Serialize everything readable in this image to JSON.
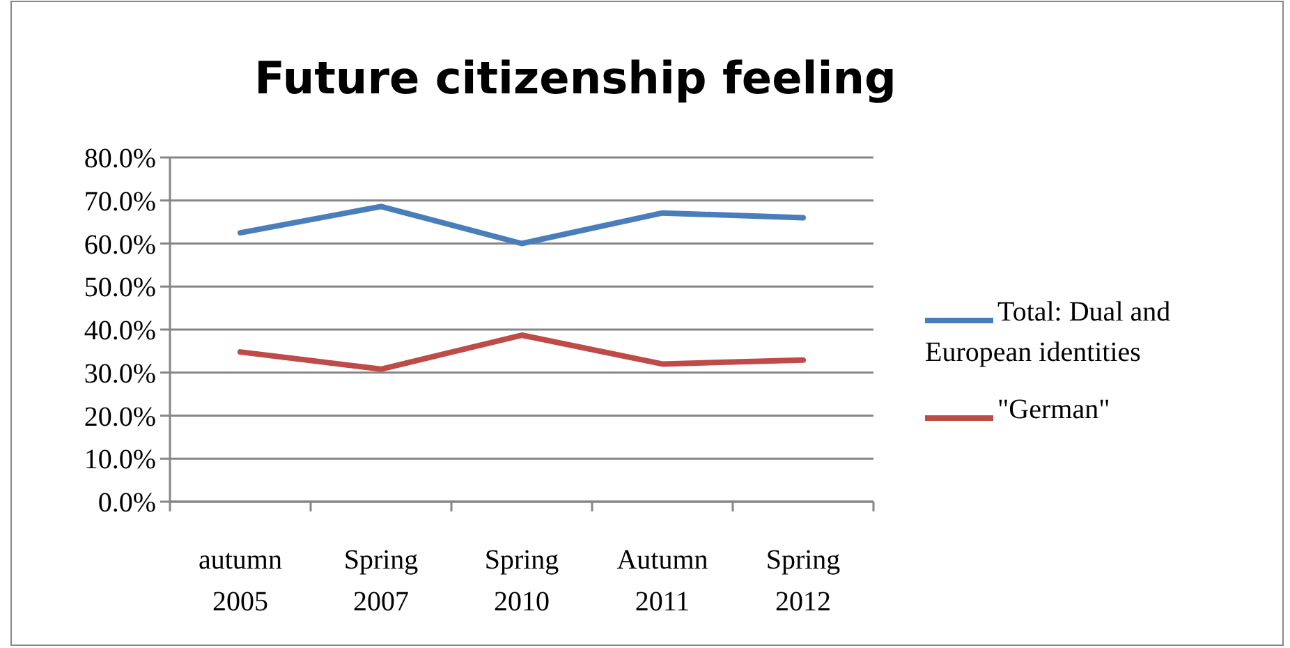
{
  "chart_data": {
    "type": "line",
    "title": "Future citizenship feeling",
    "categories": [
      "autumn 2005",
      "Spring 2007",
      "Spring 2010",
      "Autumn 2011",
      "Spring 2012"
    ],
    "series": [
      {
        "name": "Total: Dual and European identities",
        "color": "#4a7ebb",
        "values": [
          62.5,
          68.6,
          60.0,
          67.1,
          66.0
        ]
      },
      {
        "name": "\"German\"",
        "color": "#be4b48",
        "values": [
          34.8,
          30.8,
          38.7,
          32.0,
          32.9
        ]
      }
    ],
    "ylim": [
      0,
      80
    ],
    "yticks": [
      {
        "value": 0,
        "label": "0.0%"
      },
      {
        "value": 10,
        "label": "10.0%"
      },
      {
        "value": 20,
        "label": "20.0%"
      },
      {
        "value": 30,
        "label": "30.0%"
      },
      {
        "value": 40,
        "label": "40.0%"
      },
      {
        "value": 50,
        "label": "50.0%"
      },
      {
        "value": 60,
        "label": "60.0%"
      },
      {
        "value": 70,
        "label": "70.0%"
      },
      {
        "value": 80,
        "label": "80.0%"
      }
    ],
    "grid": "y",
    "legend": "right",
    "marker": "none",
    "line_style": "solid"
  }
}
